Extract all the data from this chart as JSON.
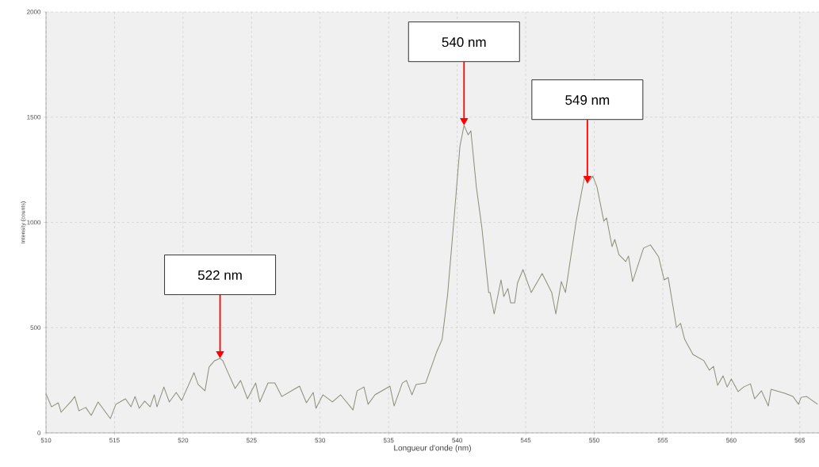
{
  "chart_data": {
    "type": "line",
    "xlabel": "Longueur d'onde (nm)",
    "ylabel": "Intensity (counts)",
    "xlim": [
      510,
      566.4
    ],
    "ylim": [
      0,
      2000
    ],
    "xticks": [
      510,
      515,
      520,
      525,
      530,
      535,
      540,
      545,
      550,
      555,
      560,
      565
    ],
    "yticks": [
      0,
      500,
      1000,
      1500,
      2000
    ],
    "grid": true,
    "series": [
      {
        "color": "#8c8c7c",
        "x": [
          510.0,
          510.4,
          510.9,
          511.1,
          511.85,
          512.1,
          512.4,
          512.9,
          513.3,
          513.8,
          514.7,
          515.1,
          515.8,
          516.2,
          516.5,
          516.8,
          517.2,
          517.6,
          517.9,
          518.1,
          518.6,
          519.0,
          519.5,
          519.9,
          520.8,
          521.1,
          521.6,
          521.9,
          522.3,
          522.7,
          522.9,
          523.2,
          523.8,
          524.2,
          524.7,
          525.3,
          525.6,
          526.2,
          526.7,
          527.2,
          528.2,
          528.5,
          529.0,
          529.5,
          529.7,
          530.2,
          530.9,
          531.5,
          532.4,
          532.7,
          533.2,
          533.5,
          534.0,
          535.1,
          535.4,
          536.0,
          536.3,
          536.7,
          537.0,
          537.7,
          538.5,
          538.9,
          539.3,
          539.8,
          540.2,
          540.5,
          540.8,
          541.0,
          541.4,
          541.8,
          542.3,
          542.4,
          542.7,
          543.2,
          543.4,
          543.7,
          543.9,
          544.2,
          544.4,
          544.8,
          545.4,
          546.2,
          546.9,
          547.2,
          547.6,
          547.9,
          548.7,
          549.3,
          549.5,
          549.9,
          550.2,
          550.7,
          550.9,
          551.3,
          551.5,
          551.8,
          552.3,
          552.5,
          552.8,
          553.6,
          554.1,
          554.7,
          555.1,
          555.4,
          556.0,
          556.3,
          556.6,
          557.2,
          558.0,
          558.4,
          558.7,
          559.0,
          559.4,
          559.7,
          560.0,
          560.5,
          560.9,
          561.4,
          561.7,
          562.2,
          562.7,
          562.9,
          563.9,
          564.5,
          564.9,
          565.1,
          565.5,
          566.3
        ],
        "values": [
          186,
          124,
          143,
          98,
          151,
          173,
          105,
          121,
          83,
          147,
          68,
          136,
          162,
          124,
          173,
          117,
          151,
          124,
          181,
          124,
          218,
          147,
          192,
          154,
          286,
          230,
          200,
          313,
          343,
          354,
          343,
          298,
          211,
          249,
          162,
          237,
          147,
          237,
          237,
          173,
          211,
          222,
          143,
          192,
          117,
          181,
          147,
          181,
          109,
          200,
          218,
          136,
          181,
          222,
          128,
          237,
          249,
          181,
          230,
          237,
          384,
          444,
          655,
          1040,
          1360,
          1461,
          1416,
          1435,
          1168,
          976,
          667,
          667,
          565,
          727,
          648,
          686,
          618,
          618,
          712,
          776,
          667,
          757,
          667,
          565,
          719,
          667,
          1013,
          1220,
          1186,
          1220,
          1168,
          1006,
          1021,
          885,
          919,
          847,
          814,
          840,
          719,
          878,
          893,
          836,
          727,
          738,
          501,
          520,
          444,
          373,
          343,
          298,
          316,
          226,
          271,
          218,
          256,
          196,
          218,
          233,
          162,
          200,
          128,
          207,
          188,
          173,
          136,
          169,
          173,
          136
        ]
      }
    ],
    "annotations": [
      {
        "text": "522 nm",
        "x": 522.7,
        "y": 354
      },
      {
        "text": "540 nm",
        "x": 540.5,
        "y": 1461
      },
      {
        "text": "549 nm",
        "x": 549.5,
        "y": 1186
      }
    ]
  }
}
